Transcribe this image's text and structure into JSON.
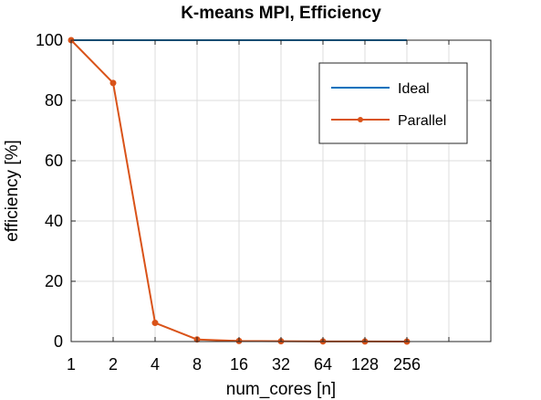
{
  "chart_data": {
    "type": "line",
    "title": "K-means MPI, Efficiency",
    "xlabel": "num_cores [n]",
    "ylabel": "efficiency [%]",
    "x_scale": "log2",
    "x": [
      1,
      2,
      4,
      8,
      16,
      32,
      64,
      128,
      256
    ],
    "x_tick_labels": [
      "1",
      "2",
      "4",
      "8",
      "16",
      "32",
      "64",
      "128",
      "256"
    ],
    "xlim": [
      1,
      1024
    ],
    "ylim": [
      0,
      100
    ],
    "y_ticks": [
      0,
      20,
      40,
      60,
      80,
      100
    ],
    "y_tick_labels": [
      "0",
      "20",
      "40",
      "60",
      "80",
      "100"
    ],
    "grid": true,
    "legend_position": "top-right",
    "series": [
      {
        "name": "Ideal",
        "color": "#0072BD",
        "marker": "none",
        "values": [
          100,
          100,
          100,
          100,
          100,
          100,
          100,
          100,
          100
        ]
      },
      {
        "name": "Parallel",
        "color": "#D95319",
        "marker": "dot",
        "values": [
          100,
          85.8,
          6.2,
          0.7,
          0.2,
          0.1,
          0.05,
          0.02,
          0.01
        ]
      }
    ]
  }
}
